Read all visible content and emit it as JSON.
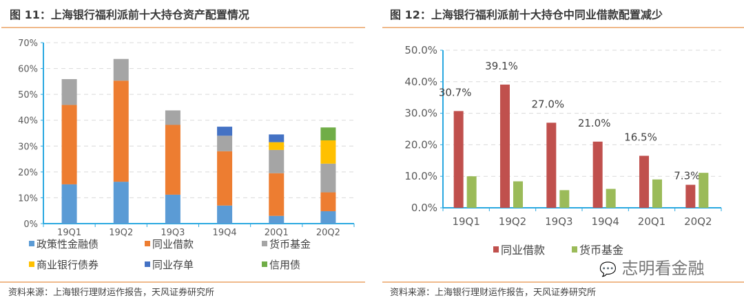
{
  "colors": {
    "policy_bond": "#5b9bd5",
    "interbank_loan": "#ed7d31",
    "money_fund": "#a5a5a5",
    "bank_bond": "#ffc000",
    "ncd": "#4472c4",
    "credit_bond": "#70ad47",
    "right_loan": "#c0504d",
    "right_fund": "#9bbb59",
    "axis": "#29a8e0",
    "grid": "#d9d9d9"
  },
  "left": {
    "title": "图 11：上海银行福利派前十大持仓资产配置情况",
    "source": "资料来源：上海银行理财运作报告，天风证券研究所"
  },
  "right": {
    "title": "图 12：上海银行福利派前十大持仓中同业借款配置减少",
    "source": "资料来源：上海银行理财运作报告，天风证券研究所"
  },
  "watermark": "志明看金融",
  "chart_data": [
    {
      "type": "bar",
      "stacked": true,
      "categories": [
        "19Q1",
        "19Q2",
        "19Q3",
        "19Q4",
        "20Q1",
        "20Q2"
      ],
      "ylim": [
        0,
        70
      ],
      "yticks": [
        "0%",
        "10%",
        "20%",
        "30%",
        "40%",
        "50%",
        "60%",
        "70%"
      ],
      "grid": true,
      "legend_position": "bottom",
      "series": [
        {
          "name": "政策性金融债",
          "color_key": "policy_bond",
          "values": [
            15.2,
            16.2,
            11.2,
            7.0,
            3.0,
            4.8
          ]
        },
        {
          "name": "同业借款",
          "color_key": "interbank_loan",
          "values": [
            30.7,
            39.1,
            27.0,
            21.0,
            16.5,
            7.3
          ]
        },
        {
          "name": "货币基金",
          "color_key": "money_fund",
          "values": [
            10.0,
            8.4,
            5.6,
            6.0,
            9.0,
            11.1
          ]
        },
        {
          "name": "商业银行债券",
          "color_key": "bank_bond",
          "values": [
            0,
            0,
            0,
            0,
            3.0,
            9.0
          ]
        },
        {
          "name": "同业存单",
          "color_key": "ncd",
          "values": [
            0,
            0,
            0,
            3.5,
            3.0,
            0
          ]
        },
        {
          "name": "信用债",
          "color_key": "credit_bond",
          "values": [
            0,
            0,
            0,
            0,
            0,
            5.0
          ]
        }
      ]
    },
    {
      "type": "bar",
      "categories": [
        "19Q1",
        "19Q2",
        "19Q3",
        "19Q4",
        "20Q1",
        "20Q2"
      ],
      "ylim": [
        0,
        50
      ],
      "yticks": [
        "0.0%",
        "10.0%",
        "20.0%",
        "30.0%",
        "40.0%",
        "50.0%"
      ],
      "grid": true,
      "legend_position": "bottom",
      "series": [
        {
          "name": "同业借款",
          "color_key": "right_loan",
          "values": [
            30.7,
            39.1,
            27.0,
            21.0,
            16.5,
            7.3
          ],
          "labels": [
            "30.7%",
            "39.1%",
            "27.0%",
            "21.0%",
            "16.5%",
            "7.3%"
          ]
        },
        {
          "name": "货币基金",
          "color_key": "right_fund",
          "values": [
            10.0,
            8.4,
            5.6,
            6.0,
            9.0,
            11.1
          ]
        }
      ]
    }
  ]
}
